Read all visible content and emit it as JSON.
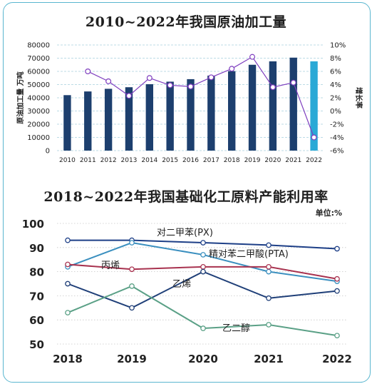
{
  "chart_data": [
    {
      "type": "bar",
      "title": "2010~2022年我国原油加工量",
      "ylabel": "原油加工量 万吨",
      "y2label": "增长率",
      "categories": [
        "2010",
        "2011",
        "2012",
        "2013",
        "2014",
        "2015",
        "2016",
        "2017",
        "2018",
        "2019",
        "2020",
        "2021",
        "2022"
      ],
      "ylim": [
        0,
        80000
      ],
      "yticks": [
        "0",
        "10000",
        "20000",
        "30000",
        "40000",
        "50000",
        "60000",
        "70000",
        "80000"
      ],
      "y2lim": [
        -6,
        10
      ],
      "y2ticks": [
        "10%",
        "8%",
        "6%",
        "4%",
        "2%",
        "0%",
        "-2%",
        "-4%",
        "-6%"
      ],
      "series": [
        {
          "kind": "bar",
          "values": [
            42000,
            44800,
            46800,
            48000,
            50300,
            52200,
            54100,
            56800,
            60200,
            65000,
            67600,
            70400,
            67600
          ]
        },
        {
          "kind": "line",
          "axis": "right",
          "values": [
            null,
            6.0,
            4.5,
            2.3,
            5.0,
            3.9,
            3.7,
            5.1,
            6.4,
            8.2,
            3.6,
            4.3,
            -4.0
          ]
        }
      ],
      "colors": {
        "bar": "#1d3f6e",
        "bar_highlight": "#2aa9d6",
        "line": "#7f3fbf",
        "grid": "#bcdbe6"
      }
    },
    {
      "type": "line",
      "title": "2018~2022年我国基础化工原料产能利用率",
      "unit": "单位:%",
      "categories": [
        "2018",
        "2019",
        "2020",
        "2021",
        "2022"
      ],
      "ylim": [
        50,
        100
      ],
      "yticks": [
        "50",
        "60",
        "70",
        "80",
        "90",
        "100"
      ],
      "series": [
        {
          "name": "对二甲苯(PX)",
          "values": [
            93,
            93,
            92,
            91,
            89.5
          ],
          "color": "#1d3f87"
        },
        {
          "name": "精对苯二甲酸(PTA)",
          "values": [
            82,
            92,
            87,
            80,
            76
          ],
          "color": "#3a8fbf"
        },
        {
          "name": "丙烯",
          "values": [
            83,
            81,
            82,
            82,
            77
          ],
          "color": "#a8324f"
        },
        {
          "name": "乙烯",
          "values": [
            75,
            65,
            80,
            69,
            72
          ],
          "color": "#1f3f78"
        },
        {
          "name": "乙二醇",
          "values": [
            63,
            74,
            56.5,
            58,
            53.5
          ],
          "color": "#5aa086"
        }
      ]
    }
  ]
}
